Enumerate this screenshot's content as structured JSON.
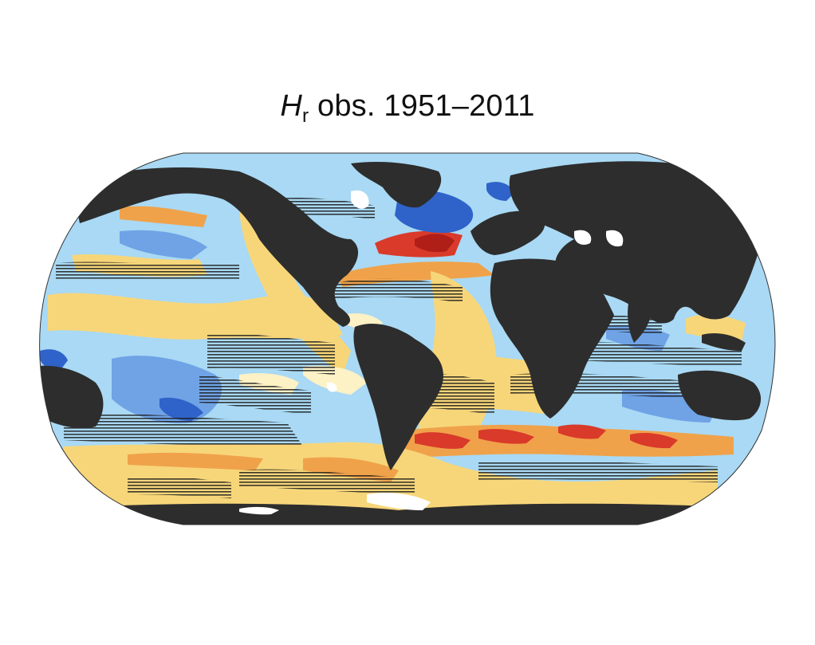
{
  "title": {
    "symbol": "H",
    "subscript": "r",
    "text": "obs. 1951–2011"
  },
  "map": {
    "projection": "Robinson",
    "colors": {
      "land": "#2d2d2d",
      "ice": "#ffffff",
      "strong_negative": "#2f63c9",
      "negative": "#6fa3e6",
      "weak_negative": "#a9d9f4",
      "near_zero": "#fdf1c6",
      "weak_positive": "#f7d67a",
      "positive": "#f0a24a",
      "strong_positive": "#d93a2a",
      "hatching": "#1a1a1a"
    }
  }
}
